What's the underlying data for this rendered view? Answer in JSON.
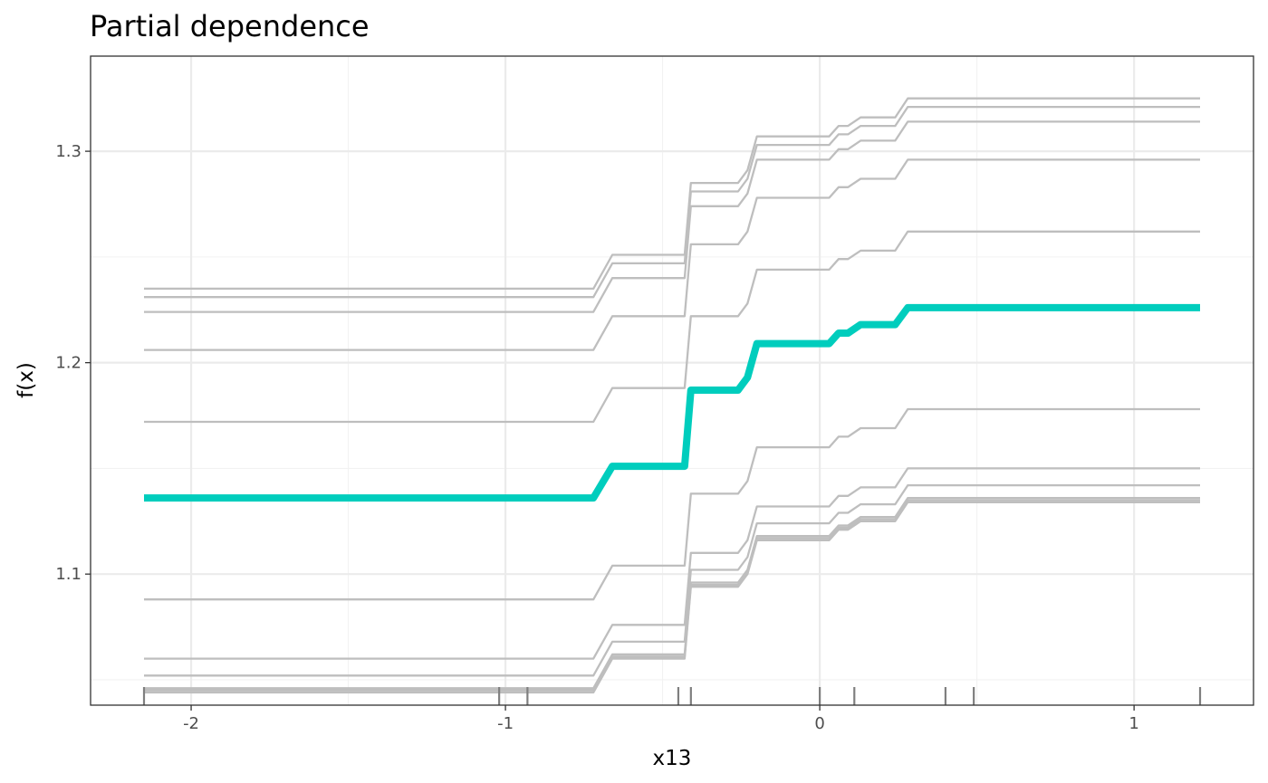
{
  "chart_data": {
    "type": "line",
    "title": "Partial dependence",
    "xlabel": "x13",
    "ylabel": "f(x)",
    "xlim": [
      -2.32,
      1.38
    ],
    "ylim": [
      1.038,
      1.345
    ],
    "grid": true,
    "x_ticks": [
      -2,
      -1,
      0,
      1
    ],
    "x_tick_labels": [
      "-2",
      "-1",
      "0",
      "1"
    ],
    "y_ticks": [
      1.1,
      1.2,
      1.3
    ],
    "y_tick_labels": [
      "1.1",
      "1.2",
      "1.3"
    ],
    "rug_x": [
      -2.15,
      -1.02,
      -0.93,
      -0.45,
      -0.41,
      0.0,
      0.11,
      0.4,
      0.49,
      1.21
    ],
    "x": [
      -2.15,
      -0.72,
      -0.66,
      -0.43,
      -0.41,
      -0.26,
      -0.23,
      -0.2,
      0.03,
      0.06,
      0.09,
      0.13,
      0.24,
      0.28,
      1.21
    ],
    "ice_color": "#bebebe",
    "pd_color": "#00cdbd",
    "series": [
      {
        "role": "ice",
        "values": [
          1.235,
          1.235,
          1.251,
          1.251,
          1.285,
          1.285,
          1.291,
          1.307,
          1.307,
          1.312,
          1.312,
          1.316,
          1.316,
          1.325,
          1.325
        ]
      },
      {
        "role": "ice",
        "values": [
          1.231,
          1.231,
          1.247,
          1.247,
          1.281,
          1.281,
          1.287,
          1.303,
          1.303,
          1.308,
          1.308,
          1.312,
          1.312,
          1.321,
          1.321
        ]
      },
      {
        "role": "ice",
        "values": [
          1.224,
          1.224,
          1.24,
          1.24,
          1.274,
          1.274,
          1.28,
          1.296,
          1.296,
          1.301,
          1.301,
          1.305,
          1.305,
          1.314,
          1.314
        ]
      },
      {
        "role": "ice",
        "values": [
          1.206,
          1.206,
          1.222,
          1.222,
          1.256,
          1.256,
          1.262,
          1.278,
          1.278,
          1.283,
          1.283,
          1.287,
          1.287,
          1.296,
          1.296
        ]
      },
      {
        "role": "ice",
        "values": [
          1.172,
          1.172,
          1.188,
          1.188,
          1.222,
          1.222,
          1.228,
          1.244,
          1.244,
          1.249,
          1.249,
          1.253,
          1.253,
          1.262,
          1.262
        ]
      },
      {
        "role": "ice",
        "values": [
          1.088,
          1.088,
          1.104,
          1.104,
          1.138,
          1.138,
          1.144,
          1.16,
          1.16,
          1.165,
          1.165,
          1.169,
          1.169,
          1.178,
          1.178
        ]
      },
      {
        "role": "ice",
        "values": [
          1.06,
          1.06,
          1.076,
          1.076,
          1.11,
          1.11,
          1.116,
          1.132,
          1.132,
          1.137,
          1.137,
          1.141,
          1.141,
          1.15,
          1.15
        ]
      },
      {
        "role": "ice",
        "values": [
          1.052,
          1.052,
          1.068,
          1.068,
          1.102,
          1.102,
          1.108,
          1.124,
          1.124,
          1.129,
          1.129,
          1.133,
          1.133,
          1.142,
          1.142
        ]
      },
      {
        "role": "ice",
        "values": [
          1.046,
          1.046,
          1.062,
          1.062,
          1.096,
          1.096,
          1.102,
          1.118,
          1.118,
          1.123,
          1.123,
          1.127,
          1.127,
          1.136,
          1.136
        ]
      },
      {
        "role": "ice",
        "values": [
          1.045,
          1.045,
          1.061,
          1.061,
          1.095,
          1.095,
          1.101,
          1.117,
          1.117,
          1.122,
          1.122,
          1.126,
          1.126,
          1.135,
          1.135
        ]
      },
      {
        "role": "ice",
        "values": [
          1.044,
          1.044,
          1.06,
          1.06,
          1.094,
          1.094,
          1.1,
          1.116,
          1.116,
          1.121,
          1.121,
          1.125,
          1.125,
          1.134,
          1.134
        ]
      },
      {
        "role": "pd",
        "values": [
          1.136,
          1.136,
          1.151,
          1.151,
          1.187,
          1.187,
          1.193,
          1.209,
          1.209,
          1.214,
          1.214,
          1.218,
          1.218,
          1.226,
          1.226
        ]
      }
    ]
  }
}
